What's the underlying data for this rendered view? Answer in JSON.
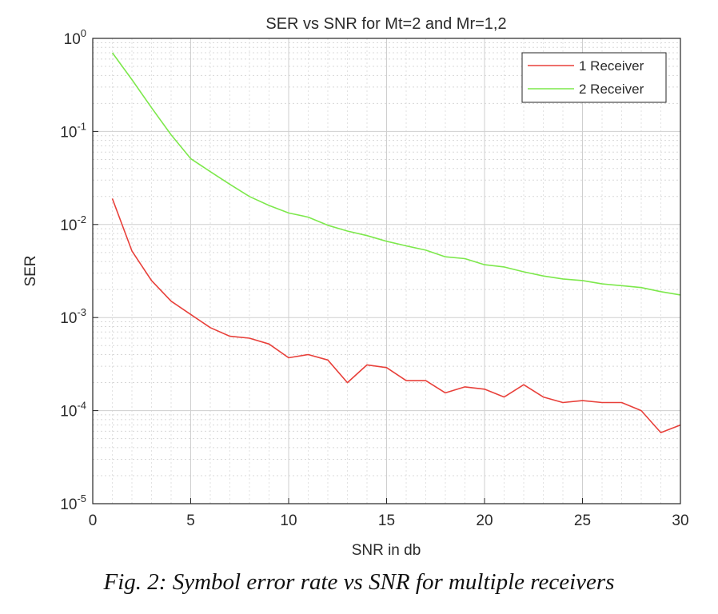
{
  "chart_data": {
    "type": "line",
    "title": "SER vs SNR for Mt=2 and Mr=1,2",
    "xlabel": "SNR in db",
    "ylabel": "SER",
    "xlim": [
      0,
      30
    ],
    "ylim": [
      1e-05,
      1
    ],
    "yscale": "log",
    "xticks": [
      0,
      5,
      10,
      15,
      20,
      25,
      30
    ],
    "yticks": [
      {
        "exp": -5,
        "value": 1e-05
      },
      {
        "exp": -4,
        "value": 0.0001
      },
      {
        "exp": -3,
        "value": 0.001
      },
      {
        "exp": -2,
        "value": 0.01
      },
      {
        "exp": -1,
        "value": 0.1
      },
      {
        "exp": 0,
        "value": 1
      }
    ],
    "grid": true,
    "legend_position": "top-right",
    "x": [
      1,
      2,
      3,
      4,
      5,
      6,
      7,
      8,
      9,
      10,
      11,
      12,
      13,
      14,
      15,
      16,
      17,
      18,
      19,
      20,
      21,
      22,
      23,
      24,
      25,
      26,
      27,
      28,
      29,
      30
    ],
    "series": [
      {
        "name": "1 Receiver",
        "color": "#e8403a",
        "values": [
          0.019,
          0.0052,
          0.0025,
          0.0015,
          0.00108,
          0.00078,
          0.00063,
          0.0006,
          0.00052,
          0.00037,
          0.0004,
          0.00035,
          0.0002,
          0.00031,
          0.00029,
          0.00021,
          0.00021,
          0.000155,
          0.00018,
          0.00017,
          0.00014,
          0.00019,
          0.00014,
          0.000122,
          0.000128,
          0.000122,
          0.000122,
          0.0001,
          5.8e-05,
          7e-05
        ]
      },
      {
        "name": "2 Receiver",
        "color": "#7de84c",
        "values": [
          0.7,
          0.36,
          0.18,
          0.092,
          0.051,
          0.037,
          0.027,
          0.02,
          0.016,
          0.0133,
          0.012,
          0.0098,
          0.0085,
          0.0076,
          0.0066,
          0.0059,
          0.0053,
          0.0045,
          0.0043,
          0.0037,
          0.0035,
          0.0031,
          0.0028,
          0.0026,
          0.0025,
          0.0023,
          0.0022,
          0.0021,
          0.0019,
          0.00175
        ]
      }
    ]
  },
  "caption": "Fig. 2: Symbol error rate vs SNR for multiple receivers"
}
